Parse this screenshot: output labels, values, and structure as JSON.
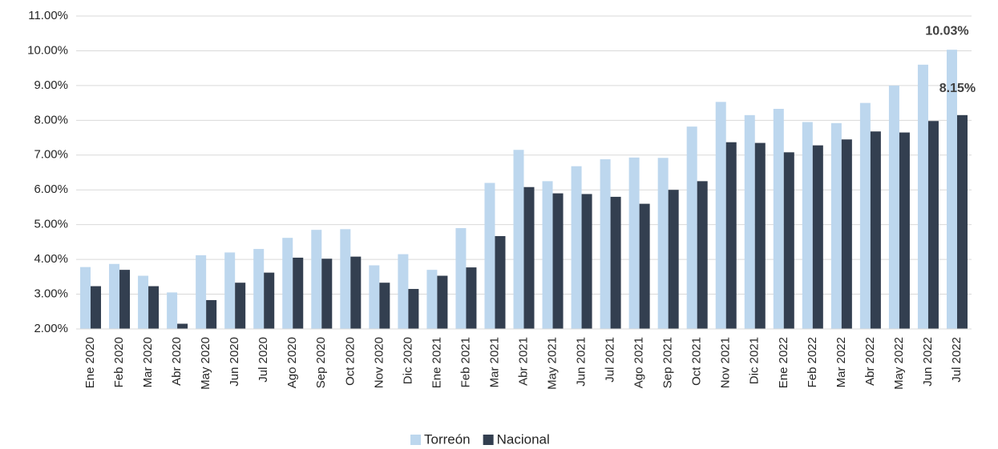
{
  "chart_data": {
    "type": "bar",
    "categories": [
      "Ene 2020",
      "Feb 2020",
      "Mar 2020",
      "Abr 2020",
      "May 2020",
      "Jun 2020",
      "Jul 2020",
      "Ago 2020",
      "Sep 2020",
      "Oct 2020",
      "Nov 2020",
      "Dic 2020",
      "Ene 2021",
      "Feb 2021",
      "Mar 2021",
      "Abr 2021",
      "May 2021",
      "Jun 2021",
      "Jul 2021",
      "Ago 2021",
      "Sep 2021",
      "Oct 2021",
      "Nov 2021",
      "Dic 2021",
      "Ene 2022",
      "Feb 2022",
      "Mar 2022",
      "Abr 2022",
      "May 2022",
      "Jun 2022",
      "Jul 2022"
    ],
    "series": [
      {
        "name": "Torreón",
        "color": "#bdd7ee",
        "values": [
          3.78,
          3.87,
          3.53,
          3.05,
          4.12,
          4.2,
          4.3,
          4.62,
          4.85,
          4.87,
          3.83,
          4.15,
          3.7,
          4.9,
          6.2,
          7.15,
          6.25,
          6.68,
          6.88,
          6.93,
          6.92,
          7.82,
          8.53,
          8.15,
          8.33,
          7.95,
          7.92,
          8.5,
          9.0,
          9.6,
          10.03
        ],
        "value_labels": [
          null,
          null,
          null,
          null,
          null,
          null,
          null,
          null,
          null,
          null,
          null,
          null,
          null,
          null,
          null,
          null,
          null,
          null,
          null,
          null,
          null,
          null,
          null,
          null,
          null,
          null,
          null,
          null,
          null,
          null,
          "10.03%"
        ]
      },
      {
        "name": "Nacional",
        "color": "#333f50",
        "values": [
          3.23,
          3.7,
          3.23,
          2.15,
          2.83,
          3.33,
          3.62,
          4.05,
          4.02,
          4.08,
          3.33,
          3.15,
          3.53,
          3.77,
          4.67,
          6.08,
          5.9,
          5.88,
          5.8,
          5.6,
          6.0,
          6.25,
          7.37,
          7.35,
          7.08,
          7.28,
          7.45,
          7.68,
          7.65,
          7.98,
          8.15
        ],
        "value_labels": [
          null,
          null,
          null,
          null,
          null,
          null,
          null,
          null,
          null,
          null,
          null,
          null,
          null,
          null,
          null,
          null,
          null,
          null,
          null,
          null,
          null,
          null,
          null,
          null,
          null,
          null,
          null,
          null,
          null,
          null,
          "8.15%"
        ]
      }
    ],
    "ylim": [
      2,
      11
    ],
    "yticks": [
      {
        "value": 2,
        "label": "2.00%"
      },
      {
        "value": 3,
        "label": "3.00%"
      },
      {
        "value": 4,
        "label": "4.00%"
      },
      {
        "value": 5,
        "label": "5.00%"
      },
      {
        "value": 6,
        "label": "6.00%"
      },
      {
        "value": 7,
        "label": "7.00%"
      },
      {
        "value": 8,
        "label": "8.00%"
      },
      {
        "value": 9,
        "label": "9.00%"
      },
      {
        "value": 10,
        "label": "10.00%"
      },
      {
        "value": 11,
        "label": "11.00%"
      }
    ],
    "grid": true,
    "legend": "bottom"
  }
}
